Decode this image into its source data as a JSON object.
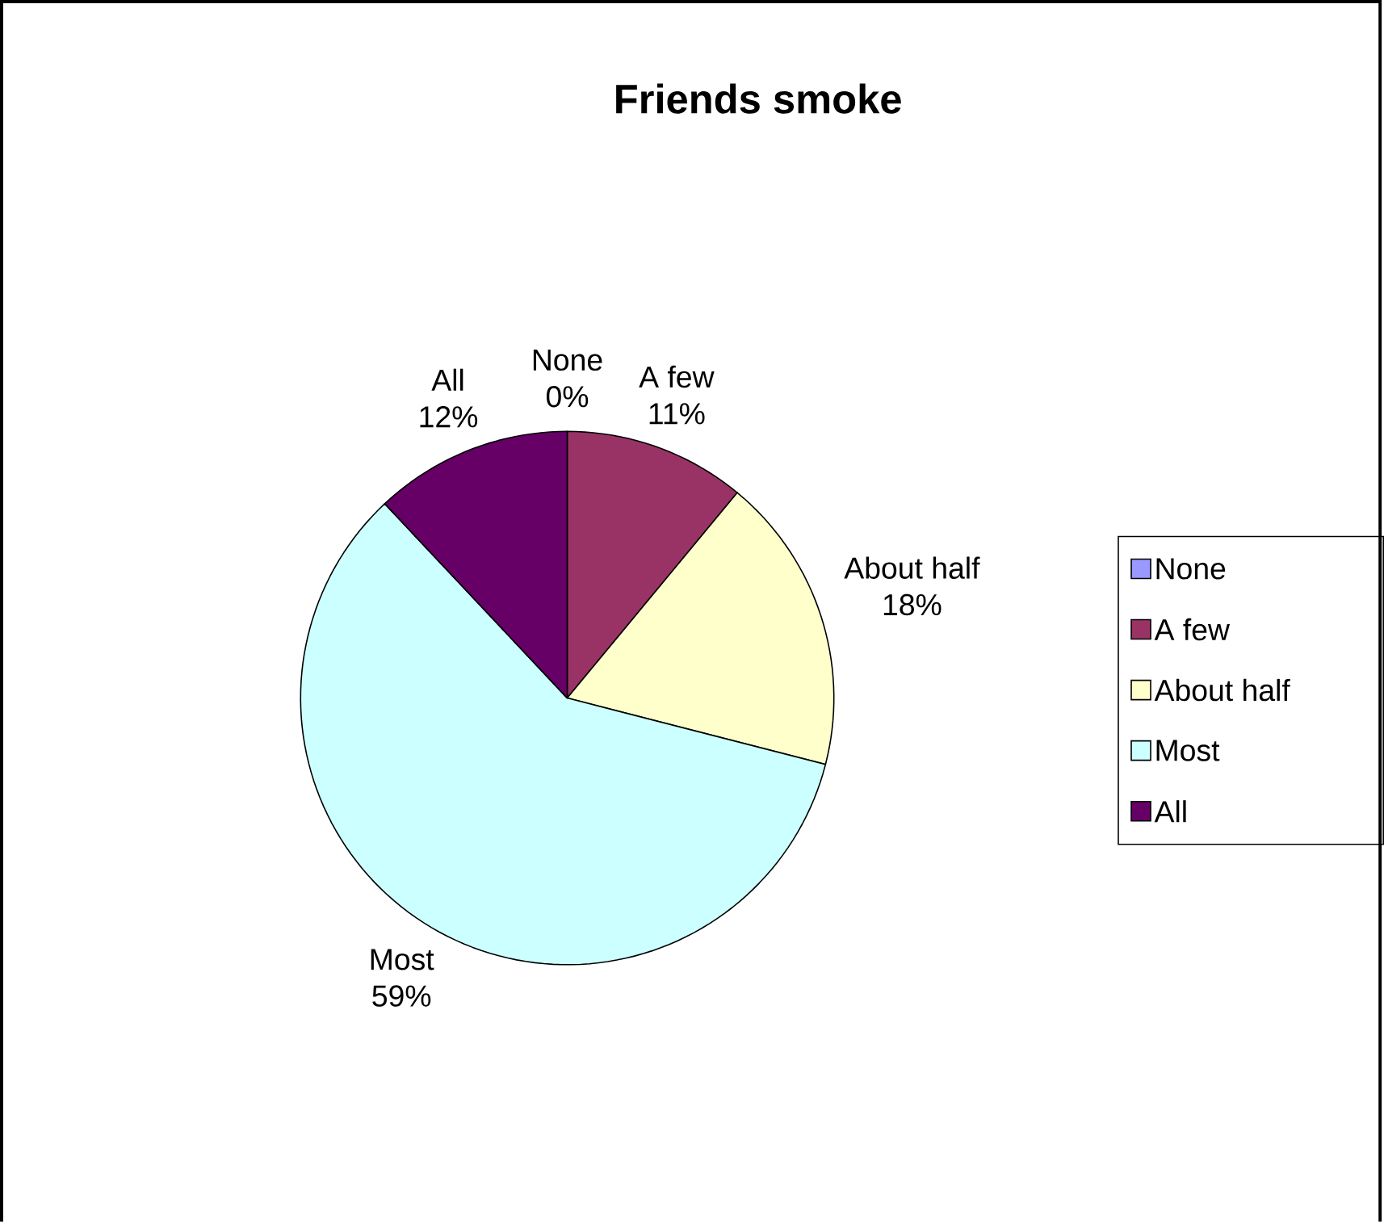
{
  "chart_data": {
    "type": "pie",
    "title": "Friends smoke",
    "categories": [
      "None",
      "A few",
      "About half",
      "Most",
      "All"
    ],
    "values": [
      0,
      11,
      18,
      59,
      12
    ],
    "value_labels": [
      "0%",
      "11%",
      "18%",
      "59%",
      "12%"
    ],
    "colors": [
      "#9999ff",
      "#993366",
      "#ffffcc",
      "#ccffff",
      "#660066"
    ],
    "legend": "right"
  }
}
